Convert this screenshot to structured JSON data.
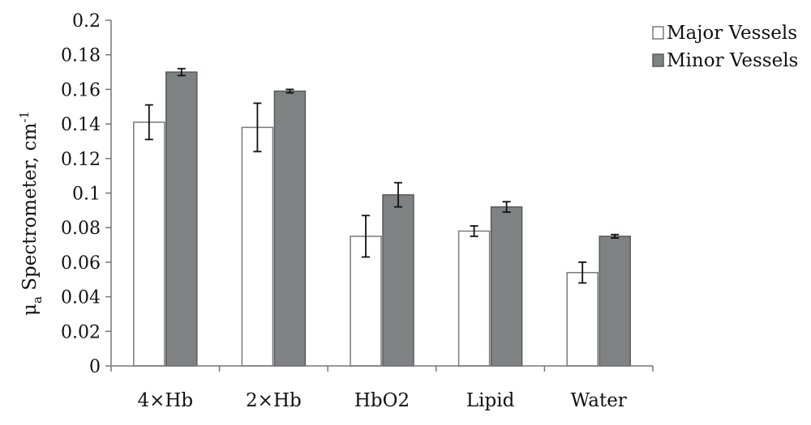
{
  "chart_data": {
    "type": "bar",
    "title": "",
    "xlabel": "",
    "ylabel": {
      "main": "μ",
      "subscript": "a",
      "rest": " Spectrometer, cm",
      "superscript": "-1"
    },
    "categories": [
      "4×Hb",
      "2×Hb",
      "HbO2",
      "Lipid",
      "Water"
    ],
    "series": [
      {
        "name": "Major Vessels",
        "color": "#ffffff",
        "stroke": "#7a7a7a",
        "values": [
          0.141,
          0.138,
          0.075,
          0.078,
          0.054
        ],
        "errors": [
          0.01,
          0.014,
          0.012,
          0.003,
          0.006
        ]
      },
      {
        "name": "Minor Vessels",
        "color": "#7f8283",
        "stroke": "#5a5a5a",
        "values": [
          0.17,
          0.159,
          0.099,
          0.092,
          0.075
        ],
        "errors": [
          0.002,
          0.001,
          0.007,
          0.003,
          0.001
        ]
      }
    ],
    "yticks": [
      "0",
      "0.02",
      "0.04",
      "0.06",
      "0.08",
      "0.1",
      "0.12",
      "0.14",
      "0.16",
      "0.18",
      "0.2"
    ],
    "ylim": [
      0,
      0.2
    ],
    "grid": false,
    "legend": "top-right"
  }
}
